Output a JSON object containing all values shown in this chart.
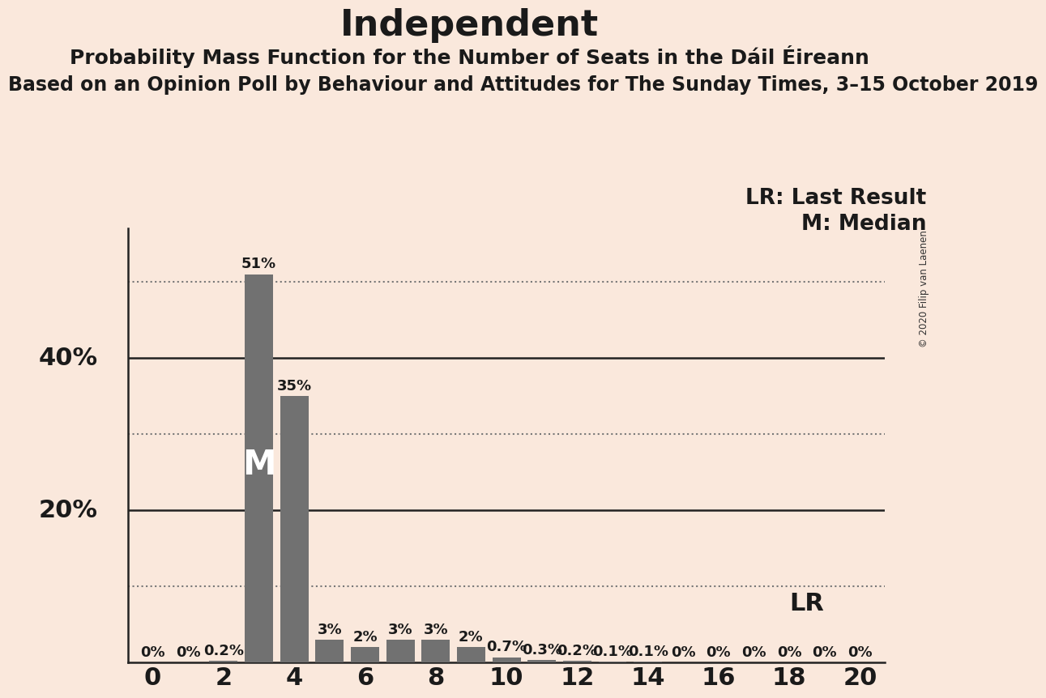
{
  "title": "Independent",
  "subtitle": "Probability Mass Function for the Number of Seats in the Dáil Éireann",
  "subtitle2": "Based on an Opinion Poll by Behaviour and Attitudes for The Sunday Times, 3–15 October 2019",
  "copyright": "© 2020 Filip van Laenen",
  "background_color": "#FAE8DC",
  "bar_color": "#717171",
  "seats": [
    0,
    1,
    2,
    3,
    4,
    5,
    6,
    7,
    8,
    9,
    10,
    11,
    12,
    13,
    14,
    15,
    16,
    17,
    18,
    19,
    20
  ],
  "probabilities": [
    0.0,
    0.0,
    0.002,
    0.51,
    0.35,
    0.03,
    0.02,
    0.03,
    0.03,
    0.02,
    0.007,
    0.003,
    0.002,
    0.001,
    0.001,
    0.0,
    0.0,
    0.0,
    0.0,
    0.0,
    0.0
  ],
  "bar_labels": [
    "0%",
    "0%",
    "0.2%",
    "51%",
    "35%",
    "3%",
    "2%",
    "3%",
    "3%",
    "2%",
    "0.7%",
    "0.3%",
    "0.2%",
    "0.1%",
    "0.1%",
    "0%",
    "0%",
    "0%",
    "0%",
    "0%",
    "0%"
  ],
  "median_seat": 3,
  "lr_seat": 19,
  "ylim": [
    0,
    0.57
  ],
  "ytick_solid": [
    0.2,
    0.4
  ],
  "ytick_dotted": [
    0.1,
    0.3,
    0.5
  ],
  "ytick_labels_pos": [
    0.2,
    0.4
  ],
  "ytick_labels_val": [
    "20%",
    "40%"
  ],
  "dotted_line_color": "#777777",
  "solid_line_color": "#222222",
  "title_fontsize": 32,
  "subtitle_fontsize": 18,
  "subtitle2_fontsize": 17,
  "label_fontsize": 13,
  "axis_fontsize": 22,
  "legend_fontsize": 19,
  "median_label_fontsize": 30,
  "lr_label_fontsize": 22
}
